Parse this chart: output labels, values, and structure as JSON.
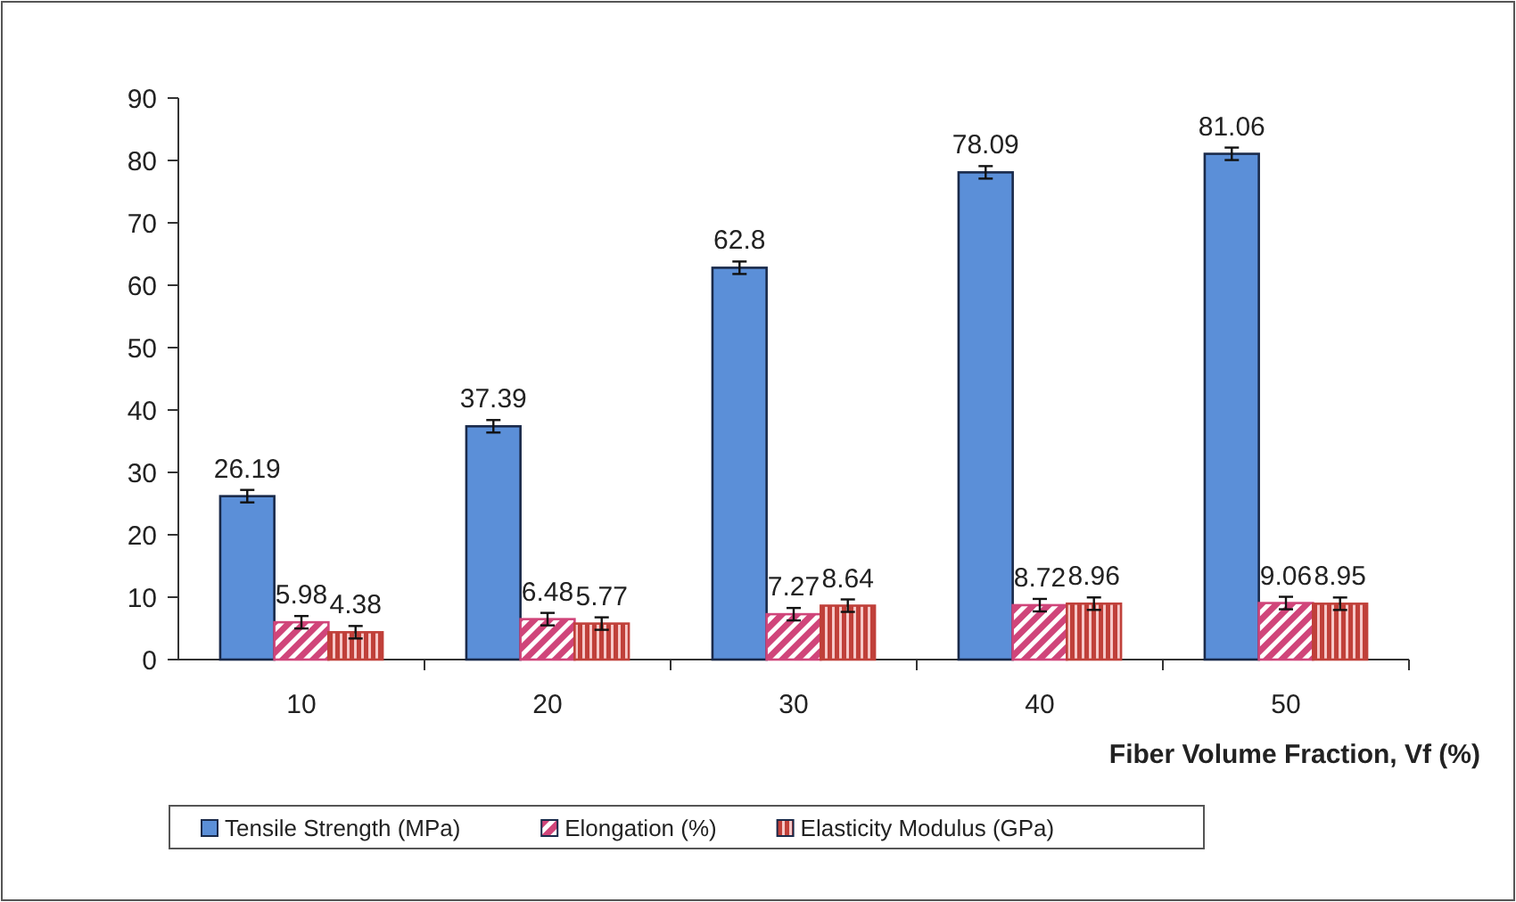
{
  "chart_data": {
    "type": "bar",
    "xlabel": "Fiber Volume Fraction, Vf (%)",
    "categories": [
      "10",
      "20",
      "30",
      "40",
      "50"
    ],
    "series": [
      {
        "name": "Tensile Strength (MPa)",
        "color": "#5b8fd8",
        "values": [
          26.19,
          37.39,
          62.8,
          78.09,
          81.06
        ],
        "errors": [
          1,
          1,
          1,
          1,
          1
        ]
      },
      {
        "name": "Elongation (%)",
        "color": "#d0457a",
        "values": [
          5.98,
          6.48,
          7.27,
          8.72,
          9.06
        ],
        "errors": [
          1,
          1,
          1,
          1,
          1
        ]
      },
      {
        "name": "Elasticity Modulus (GPa)",
        "color": "#c0403a",
        "values": [
          4.38,
          5.77,
          8.64,
          8.96,
          8.95
        ],
        "errors": [
          1,
          1,
          1,
          1,
          1
        ]
      }
    ],
    "ylim": [
      0,
      90
    ],
    "yticks": [
      0,
      10,
      20,
      30,
      40,
      50,
      60,
      70,
      80,
      90
    ],
    "grid": false,
    "legend": "bottom",
    "data_labels": true
  }
}
